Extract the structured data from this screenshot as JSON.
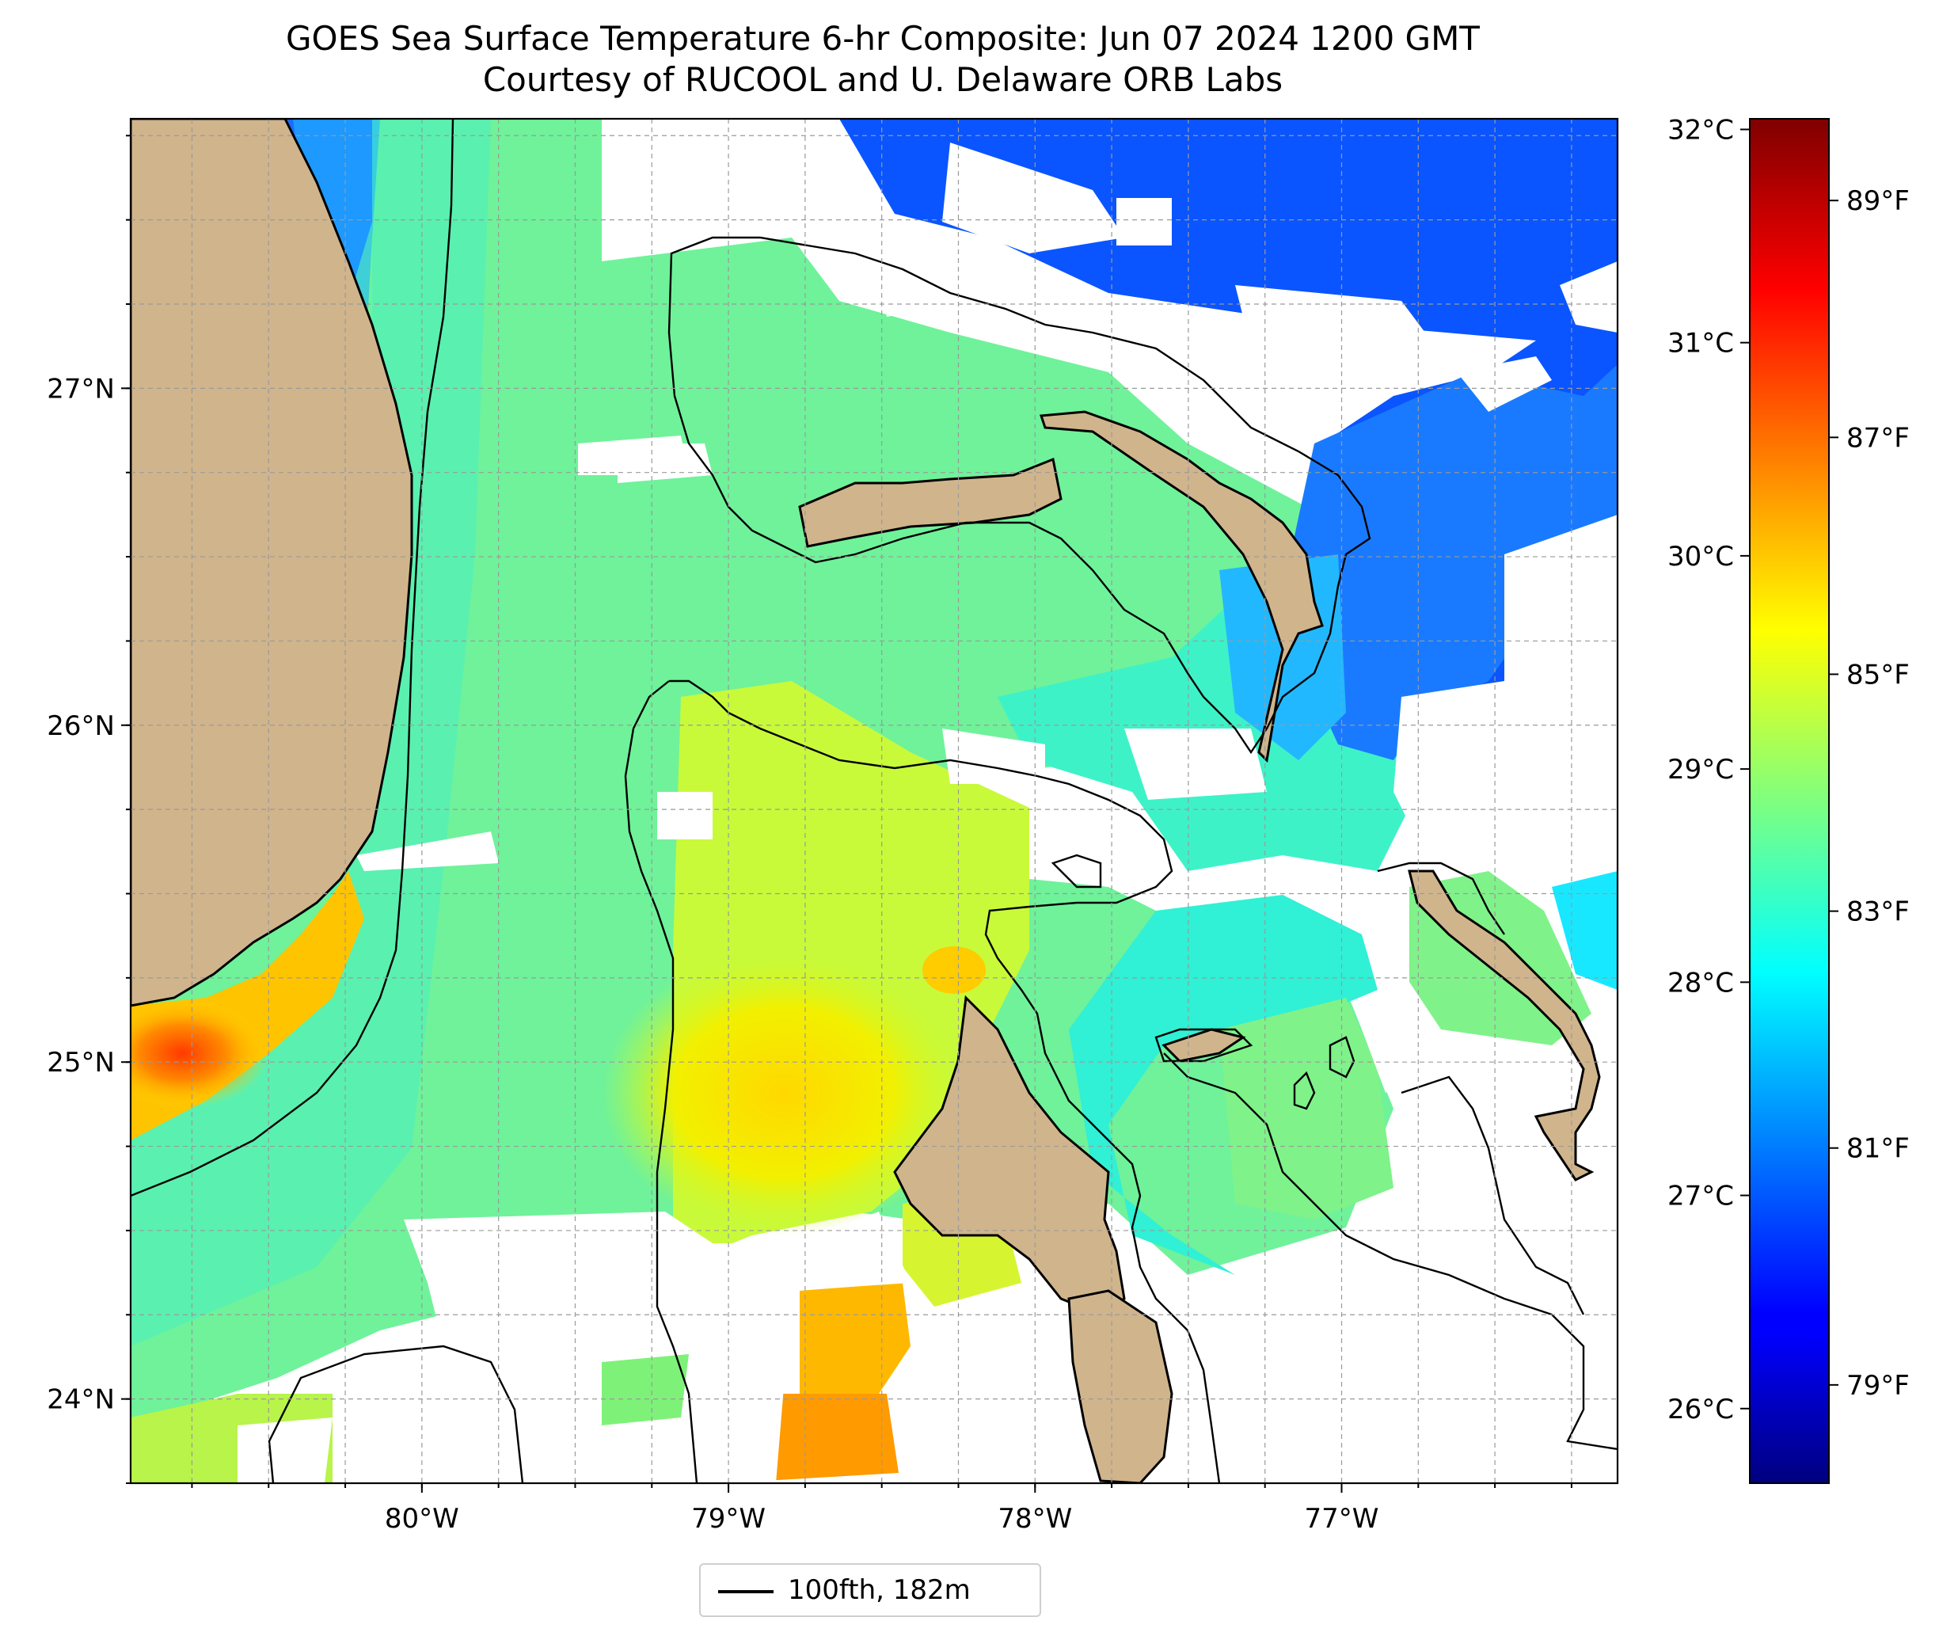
{
  "title": {
    "line1": "GOES Sea Surface Temperature 6-hr Composite: Jun 07 2024 1200 GMT",
    "line2": "Courtesy of RUCOOL and U. Delaware ORB Labs"
  },
  "map": {
    "lon_range": [
      -80.95,
      -76.1
    ],
    "lat_range": [
      23.75,
      27.8
    ],
    "x_ticks": [
      {
        "value": -80,
        "label": "80°W"
      },
      {
        "value": -79,
        "label": "79°W"
      },
      {
        "value": -78,
        "label": "78°W"
      },
      {
        "value": -77,
        "label": "77°W"
      }
    ],
    "y_ticks": [
      {
        "value": 27,
        "label": "27°N"
      },
      {
        "value": 26,
        "label": "26°N"
      },
      {
        "value": 25,
        "label": "25°N"
      },
      {
        "value": 24,
        "label": "24°N"
      }
    ],
    "gridlines": true,
    "land_color": "#d0b48c",
    "missing_data_color": "#ffffff"
  },
  "colorbar": {
    "colormap": "jet",
    "celsius_range": [
      25.65,
      32.05
    ],
    "celsius_ticks": [
      {
        "value": 32,
        "label": "32°C"
      },
      {
        "value": 31,
        "label": "31°C"
      },
      {
        "value": 30,
        "label": "30°C"
      },
      {
        "value": 29,
        "label": "29°C"
      },
      {
        "value": 28,
        "label": "28°C"
      },
      {
        "value": 27,
        "label": "27°C"
      },
      {
        "value": 26,
        "label": "26°C"
      }
    ],
    "fahrenheit_ticks": [
      {
        "value": 89,
        "label": "89°F"
      },
      {
        "value": 87,
        "label": "87°F"
      },
      {
        "value": 85,
        "label": "85°F"
      },
      {
        "value": 83,
        "label": "83°F"
      },
      {
        "value": 81,
        "label": "81°F"
      },
      {
        "value": 79,
        "label": "79°F"
      }
    ]
  },
  "legend": {
    "label": "100fth, 182m",
    "line_color": "#000000"
  }
}
